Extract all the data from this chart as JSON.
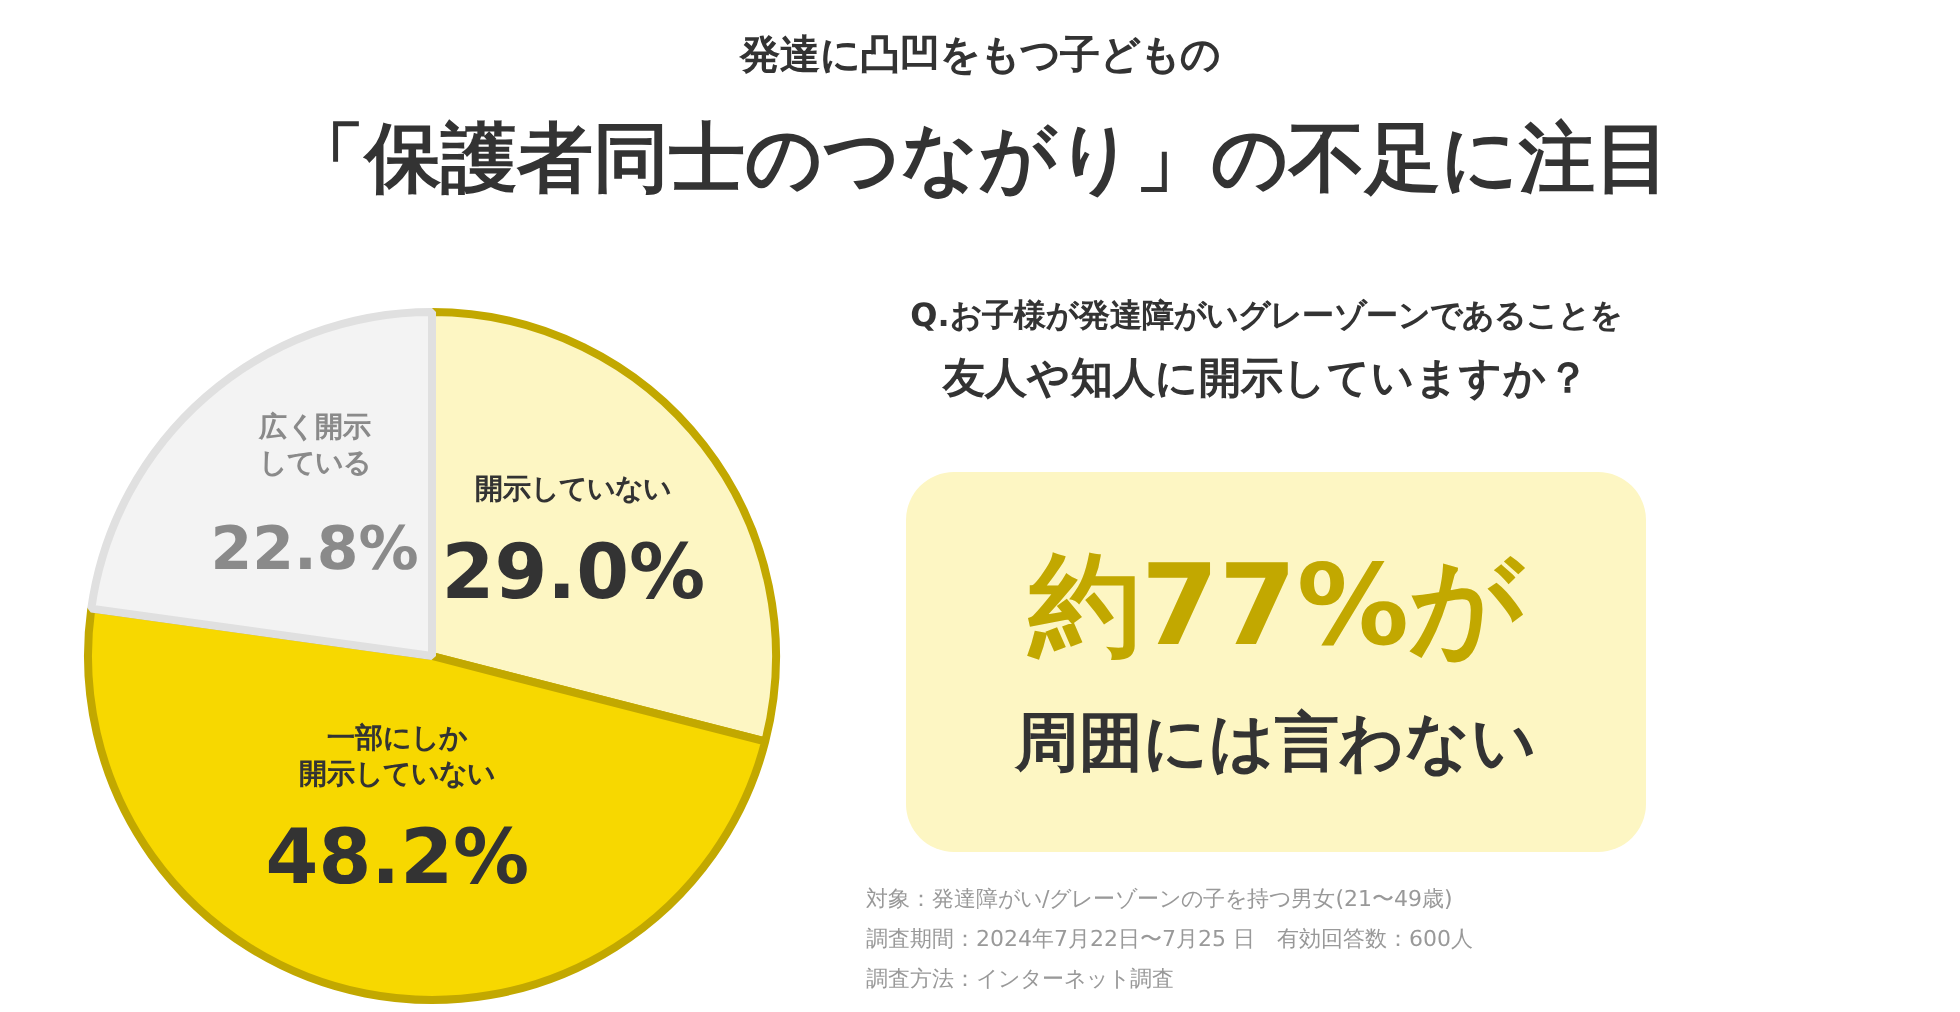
{
  "chart_data": {
    "type": "pie",
    "subtitle": "発達に凸凹をもつ子どもの",
    "title": "「保護者同士のつながり」の不足に注目",
    "categories": [
      "開示していない",
      "一部にしか開示していない",
      "広く開示している"
    ],
    "values": [
      29.0,
      48.2,
      22.8
    ],
    "value_labels": [
      "29.0%",
      "48.2%",
      "22.8%"
    ],
    "colors": [
      "#fdf6c3",
      "#f7d800",
      "#f3f3f3"
    ],
    "legend": false,
    "annotations": [
      "Q.お子様が発達障がいグレーゾーンであることを",
      "友人や知人に開示していますか？",
      "約77%が",
      "周囲には言わない",
      "対象：発達障がい/グレーゾーンの子を持つ男女(21〜49歳)",
      "調査期間：2024年7月22日〜7月25 日　有効回答数：600人",
      "調査方法：インターネット調査"
    ]
  }
}
